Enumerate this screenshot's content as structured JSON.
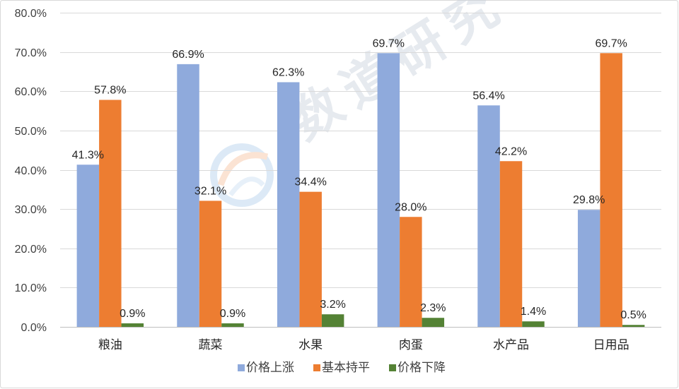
{
  "chart_data": {
    "type": "bar",
    "categories": [
      "粮油",
      "蔬菜",
      "水果",
      "肉蛋",
      "水产品",
      "日用品"
    ],
    "series": [
      {
        "name": "价格上涨",
        "color": "#8FAADC",
        "values": [
          41.3,
          66.9,
          62.3,
          69.7,
          56.4,
          29.8
        ]
      },
      {
        "name": "基本持平",
        "color": "#ED7D31",
        "values": [
          57.8,
          32.1,
          34.4,
          28.0,
          42.2,
          69.7
        ]
      },
      {
        "name": "价格下降",
        "color": "#548235",
        "values": [
          0.9,
          0.9,
          3.2,
          2.3,
          1.4,
          0.5
        ]
      }
    ],
    "ylim": [
      0,
      80
    ],
    "ytick_labels": [
      "0.0%",
      "10.0%",
      "20.0%",
      "30.0%",
      "40.0%",
      "50.0%",
      "60.0%",
      "70.0%",
      "80.0%"
    ],
    "grid": true,
    "legend_position": "bottom"
  },
  "watermark": {
    "text": "数道研究"
  },
  "colors": {
    "grid": "#D9D9D9",
    "frame": "#D9D9D9"
  }
}
